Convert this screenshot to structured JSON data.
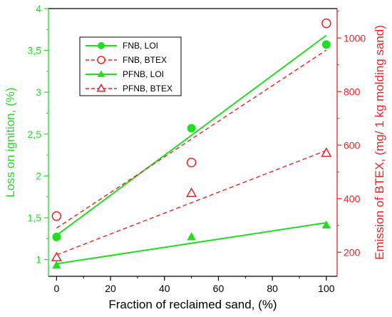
{
  "chart_data": {
    "type": "scatter",
    "xlabel": "Fraction of reclaimed sand, (%)",
    "ylabel_left": "Loss on ignition, (%)",
    "ylabel_right": "Emission of BTEX, (mg/ 1 kg molding sand)",
    "xlim": [
      -3,
      104
    ],
    "ylim_left": [
      0.8,
      4.0
    ],
    "ylim_right": [
      110,
      1110
    ],
    "x_ticks": [
      0,
      20,
      40,
      60,
      80,
      100
    ],
    "x_tick_labels": [
      "0",
      "20",
      "40",
      "60",
      "80",
      "100"
    ],
    "y_left_ticks": [
      1,
      1.5,
      2,
      2.5,
      3,
      3.5,
      4
    ],
    "y_left_tick_labels": [
      "1",
      "1,5",
      "2",
      "2,5",
      "3",
      "3,5",
      "4"
    ],
    "y_right_ticks": [
      200,
      400,
      600,
      800,
      1000
    ],
    "y_right_tick_labels": [
      "200",
      "400",
      "600",
      "800",
      "1000"
    ],
    "left_axis_color": "#22dd22",
    "right_axis_color": "#ee2222",
    "grid": false,
    "legend_position": "top-left",
    "series": [
      {
        "name": "FNB, LOI",
        "axis": "left",
        "marker": "filled-circle",
        "color": "#22dd22",
        "line_style": "solid",
        "x": [
          0,
          50,
          100
        ],
        "y": [
          1.27,
          2.57,
          3.57
        ],
        "fit": [
          [
            0,
            1.29
          ],
          [
            100,
            3.68
          ]
        ]
      },
      {
        "name": "FNB, BTEX",
        "axis": "right",
        "marker": "open-circle",
        "color": "#ee2222",
        "line_style": "dashed",
        "x": [
          0,
          50,
          100
        ],
        "y": [
          335,
          535,
          1055
        ],
        "fit": [
          [
            0,
            290
          ],
          [
            100,
            955
          ]
        ]
      },
      {
        "name": "PFNB, LOI",
        "axis": "left",
        "marker": "filled-triangle",
        "color": "#22dd22",
        "line_style": "solid",
        "x": [
          0,
          50,
          100
        ],
        "y": [
          0.93,
          1.27,
          1.41
        ],
        "fit": [
          [
            0,
            0.95
          ],
          [
            100,
            1.44
          ]
        ]
      },
      {
        "name": "PFNB, BTEX",
        "axis": "right",
        "marker": "open-triangle",
        "color": "#ee2222",
        "line_style": "dashed",
        "x": [
          0,
          50,
          100
        ],
        "y": [
          180,
          420,
          570
        ],
        "fit": [
          [
            0,
            190
          ],
          [
            100,
            580
          ]
        ]
      }
    ]
  }
}
